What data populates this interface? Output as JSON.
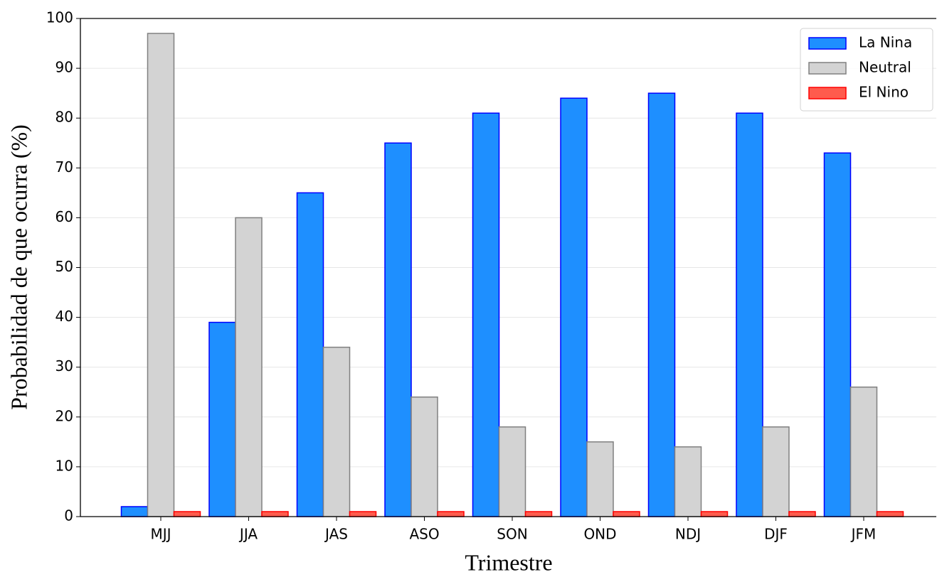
{
  "chart_data": {
    "type": "bar",
    "xlabel": "Trimestre",
    "ylabel": "Probabilidad de que ocurra (%)",
    "categories": [
      "MJJ",
      "JJA",
      "JAS",
      "ASO",
      "SON",
      "OND",
      "NDJ",
      "DJF",
      "JFM"
    ],
    "series": [
      {
        "name": "La Nina",
        "color": "#1e8fff",
        "edgecolor": "#0000ff",
        "values": [
          2,
          39,
          65,
          75,
          81,
          84,
          85,
          81,
          73
        ]
      },
      {
        "name": "Neutral",
        "color": "#d3d3d3",
        "edgecolor": "#808080",
        "values": [
          97,
          60,
          34,
          24,
          18,
          15,
          14,
          18,
          26
        ]
      },
      {
        "name": "El Nino",
        "color": "#ff5b4d",
        "edgecolor": "#ff0000",
        "values": [
          1,
          1,
          1,
          1,
          1,
          1,
          1,
          1,
          1
        ]
      }
    ],
    "ylim": [
      0,
      100
    ],
    "yticks": [
      0,
      10,
      20,
      30,
      40,
      50,
      60,
      70,
      80,
      90,
      100
    ],
    "grid": true,
    "legend": "upper right"
  }
}
